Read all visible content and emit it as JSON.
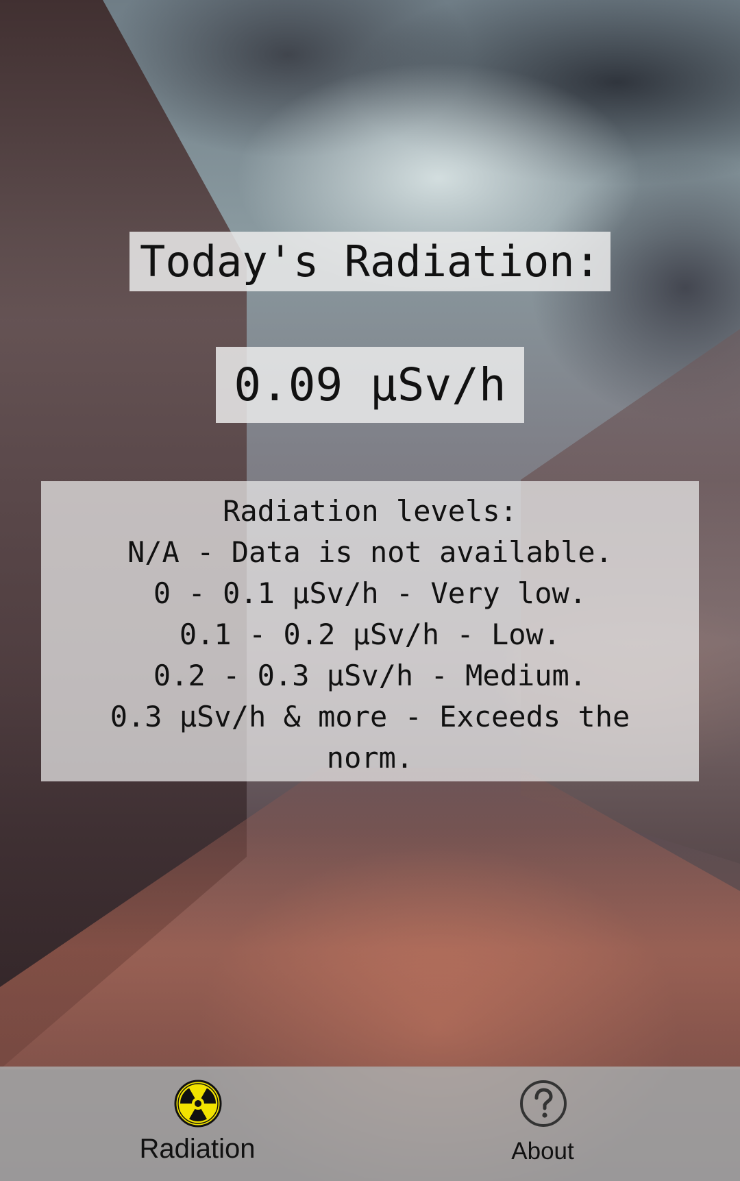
{
  "header": {
    "title": "Today's Radiation:"
  },
  "reading": {
    "value": "0.09 μSv/h"
  },
  "levels": {
    "heading": "Radiation levels:",
    "items": [
      "N/A - Data is not available.",
      "0 - 0.1 μSv/h - Very low.",
      "0.1 - 0.2 μSv/h - Low.",
      "0.2 - 0.3 μSv/h - Medium.",
      "0.3 μSv/h & more - Exceeds the norm."
    ]
  },
  "bottom_nav": {
    "items": [
      {
        "label": "Radiation",
        "icon": "radiation-icon",
        "active": true,
        "icon_color": "#f2e300"
      },
      {
        "label": "About",
        "icon": "help-circle-icon",
        "active": false,
        "icon_color": "#333333"
      }
    ]
  }
}
